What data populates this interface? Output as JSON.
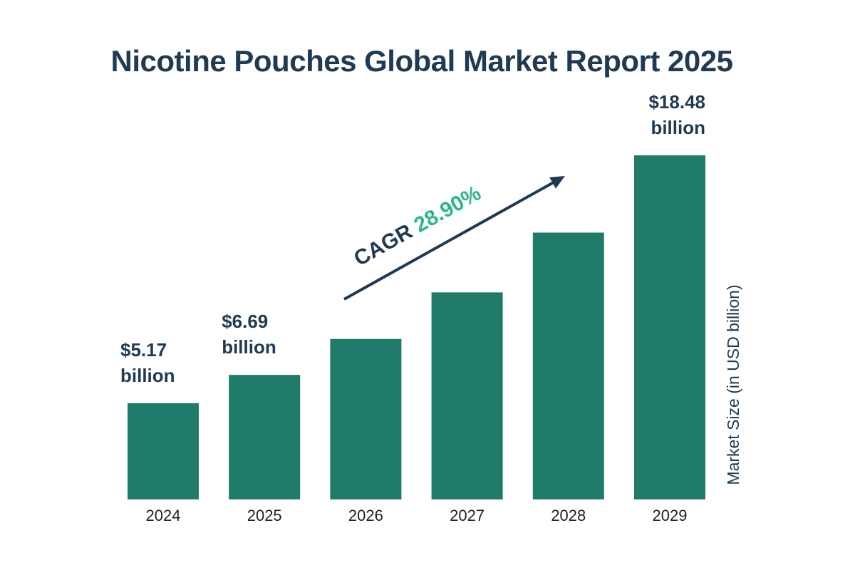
{
  "chart_data": {
    "type": "bar",
    "title": "Nicotine Pouches Global Market Report 2025",
    "xlabel": "",
    "ylabel": "Market Size (in USD billion)",
    "categories": [
      "2024",
      "2025",
      "2026",
      "2027",
      "2028",
      "2029"
    ],
    "values": [
      5.17,
      6.69,
      8.62,
      11.12,
      14.33,
      18.48
    ],
    "value_labels": [
      {
        "category": "2024",
        "line1": "$5.17",
        "line2": "billion"
      },
      {
        "category": "2025",
        "line1": "$6.69",
        "line2": "billion"
      },
      {
        "category": "2029",
        "line1": "$18.48",
        "line2": "billion"
      }
    ],
    "ylim": [
      0,
      20
    ],
    "grid": false,
    "bar_color": "#207b6b",
    "annotation": {
      "label": "CAGR",
      "value": "28.90%",
      "label_color": "#1f3a52",
      "value_color": "#2fb58d"
    }
  }
}
